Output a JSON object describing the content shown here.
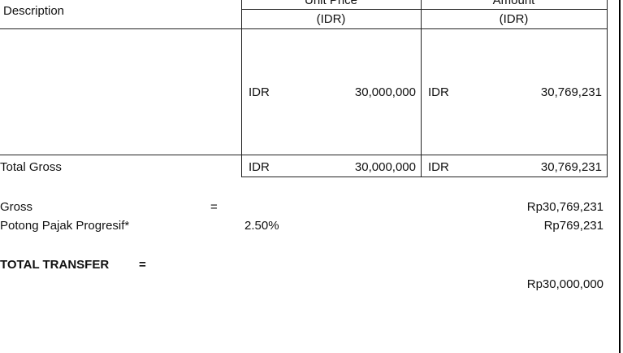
{
  "table": {
    "headers": {
      "description": "Description",
      "unit_price": "Unit Price",
      "unit_price_currency": "(IDR)",
      "amount": "Amount",
      "amount_currency": "(IDR)"
    },
    "row": {
      "unit_price_currency": "IDR",
      "unit_price": "30,000,000",
      "amount_currency": "IDR",
      "amount": "30,769,231"
    },
    "total": {
      "label": "Total Gross",
      "unit_price_currency": "IDR",
      "unit_price": "30,000,000",
      "amount_currency": "IDR",
      "amount": "30,769,231"
    }
  },
  "summary": {
    "gross_label": "Gross",
    "gross_eq": "=",
    "gross_value": "Rp30,769,231",
    "tax_label": "Potong Pajak Progresif*",
    "tax_rate": "2.50%",
    "tax_value": "Rp769,231",
    "total_label": "TOTAL TRANSFER",
    "total_eq": "=",
    "total_value": "Rp30,000,000"
  }
}
